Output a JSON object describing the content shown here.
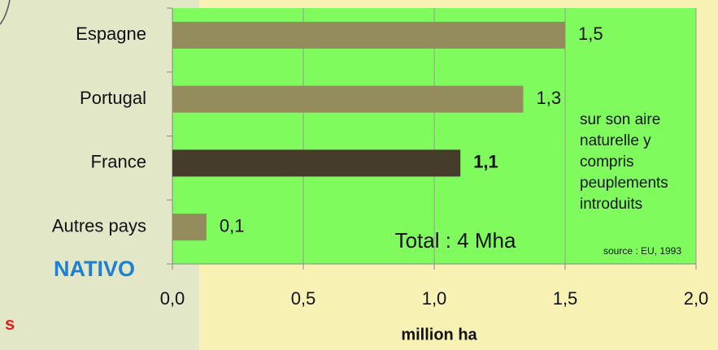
{
  "chart_data": {
    "type": "barh",
    "categories": [
      "Espagne",
      "Portugal",
      "France",
      "Autres pays"
    ],
    "values": [
      1.5,
      1.34,
      1.1,
      0.13
    ],
    "value_labels": [
      "1,5",
      "1,3",
      "1,1",
      "0,1"
    ],
    "value_label_bold": [
      false,
      false,
      true,
      false
    ],
    "colors": [
      "#958c5e",
      "#958c5e",
      "#453c2c",
      "#958c5e"
    ],
    "xlim": [
      0,
      2
    ],
    "xticks": [
      {
        "value": 0,
        "label": "0,0"
      },
      {
        "value": 0.5,
        "label": "0,5"
      },
      {
        "value": 1,
        "label": "1,0"
      },
      {
        "value": 1.5,
        "label": "1,5"
      },
      {
        "value": 2,
        "label": "2,0"
      }
    ],
    "grid": true,
    "xlabel": "million ha",
    "annotations": {
      "brand": "NATIVO",
      "total": "Total : 4 Mha",
      "note": [
        "sur son aire",
        "naturelle y",
        "compris",
        "peuplements",
        "introduits"
      ],
      "source": "source : EU, 1993",
      "fragment": "s"
    }
  }
}
